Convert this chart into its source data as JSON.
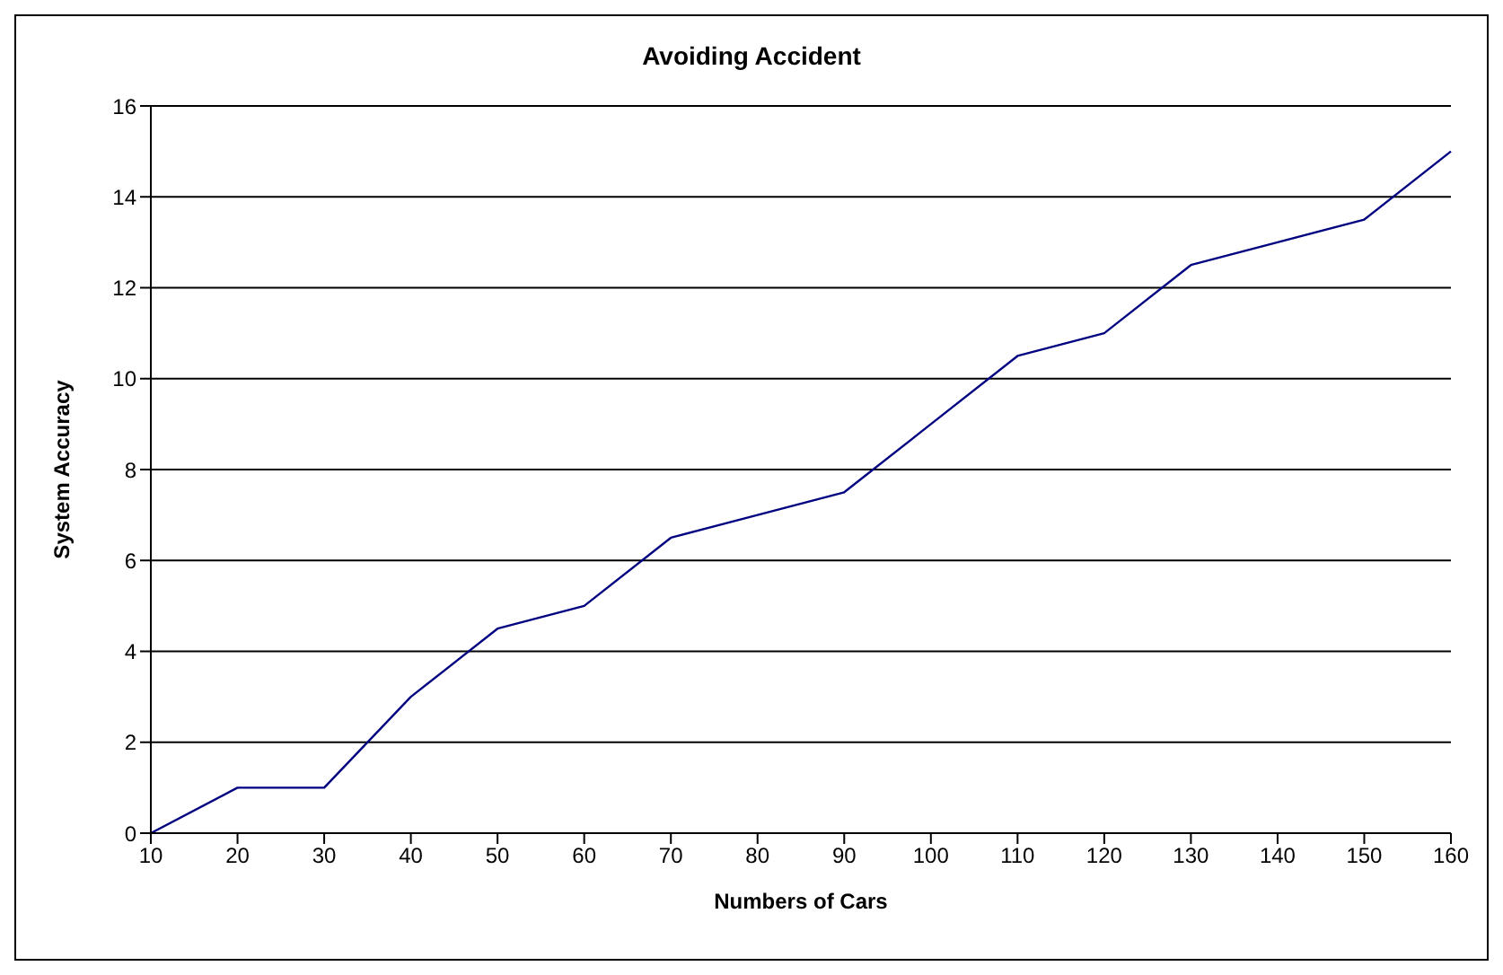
{
  "chart_data": {
    "type": "line",
    "title": "Avoiding Accident",
    "xlabel": "Numbers of Cars",
    "ylabel": "System Accuracy",
    "categories": [
      "10",
      "20",
      "30",
      "40",
      "50",
      "60",
      "70",
      "80",
      "90",
      "100",
      "110",
      "120",
      "130",
      "140",
      "150",
      "160"
    ],
    "series": [
      {
        "color": "#000080",
        "values": [
          0,
          1,
          1,
          3,
          4.5,
          5,
          6.5,
          7,
          7.5,
          9,
          10.5,
          11,
          12.5,
          13,
          13.5,
          15
        ]
      }
    ],
    "ylim": [
      0,
      16
    ],
    "yticks": [
      0,
      2,
      4,
      6,
      8,
      10,
      12,
      14,
      16
    ],
    "grid": "y",
    "legend": false,
    "marker": "none",
    "line_style": "solid"
  }
}
